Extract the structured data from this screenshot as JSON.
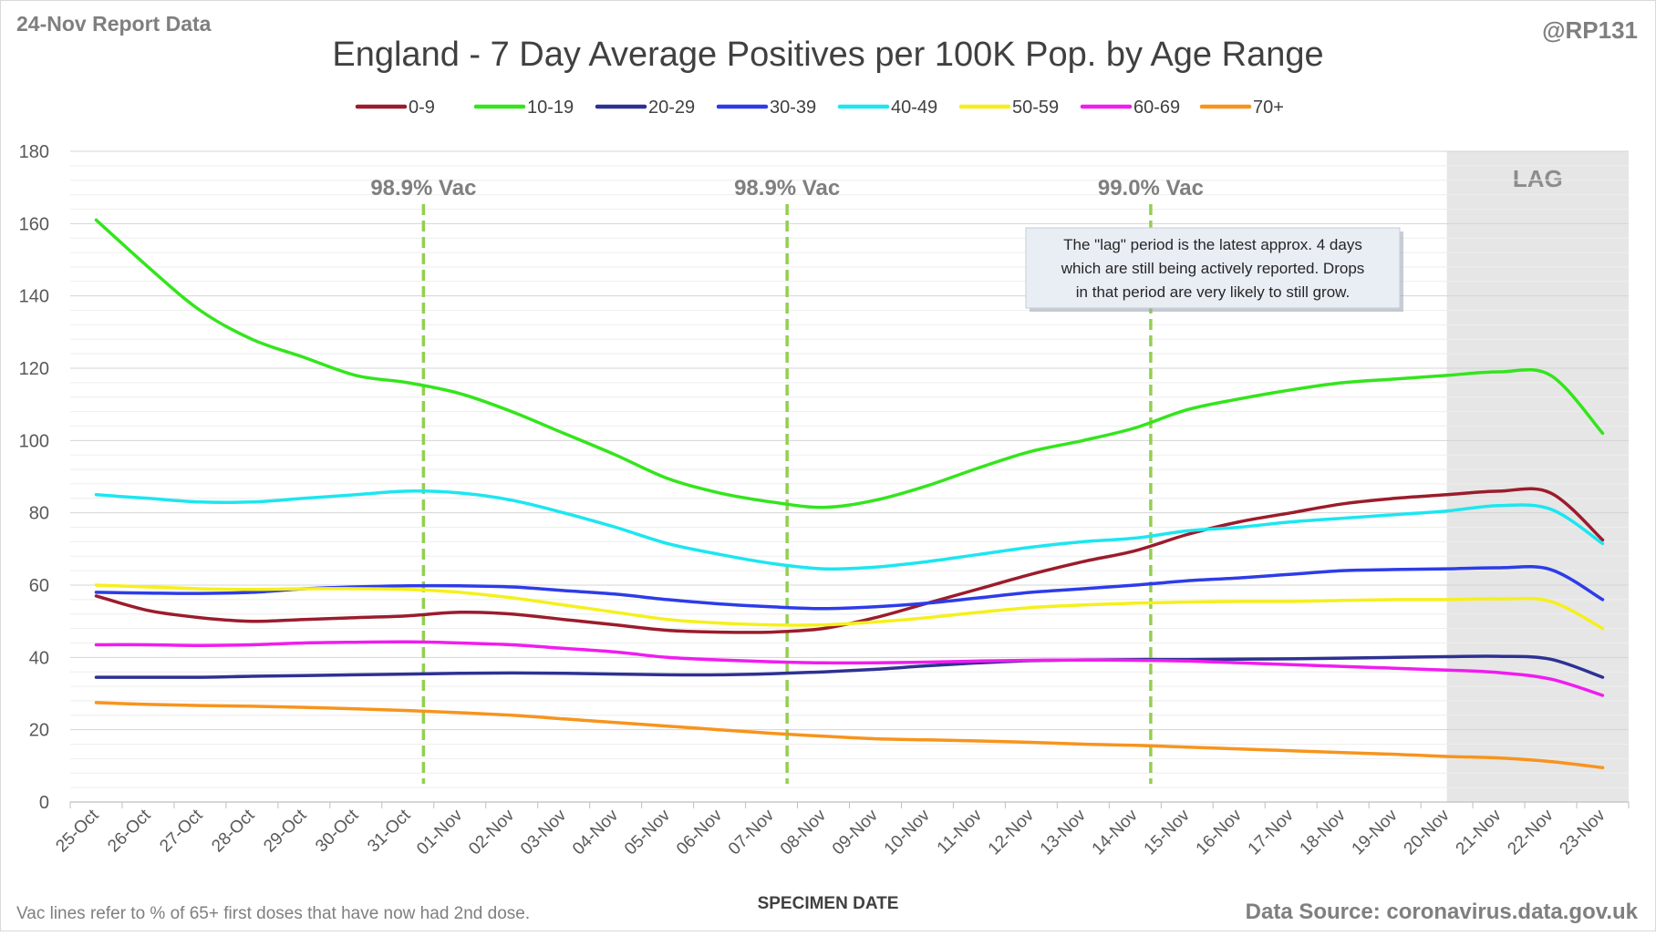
{
  "header": {
    "report_label": "24-Nov Report Data",
    "handle": "@RP131"
  },
  "footer": {
    "note": "Vac lines refer to % of 65+ first doses that have now had 2nd dose.",
    "source": "Data Source: coronavirus.data.gov.uk"
  },
  "annotation": {
    "lag_label": "LAG",
    "lag_note_lines": [
      "The \"lag\" period is the latest approx. 4 days",
      "which are still being actively reported.  Drops",
      "in that period are very likely to still grow."
    ]
  },
  "colors": {
    "grid": "#d9d9d9",
    "axis_text": "#595959",
    "vac_line": "#92d050",
    "lag_shade": "#e6e6e6"
  },
  "chart_data": {
    "type": "line",
    "title": "England - 7 Day Average Positives per 100K Pop. by Age Range",
    "xlabel": "SPECIMEN DATE",
    "ylabel": "",
    "ylim": [
      0,
      180
    ],
    "yticks": [
      0,
      20,
      40,
      60,
      80,
      100,
      120,
      140,
      160,
      180
    ],
    "grid": true,
    "legend_position": "top",
    "categories": [
      "25-Oct",
      "26-Oct",
      "27-Oct",
      "28-Oct",
      "29-Oct",
      "30-Oct",
      "31-Oct",
      "01-Nov",
      "02-Nov",
      "03-Nov",
      "04-Nov",
      "05-Nov",
      "06-Nov",
      "07-Nov",
      "08-Nov",
      "09-Nov",
      "10-Nov",
      "11-Nov",
      "12-Nov",
      "13-Nov",
      "14-Nov",
      "15-Nov",
      "16-Nov",
      "17-Nov",
      "18-Nov",
      "19-Nov",
      "20-Nov",
      "21-Nov",
      "22-Nov",
      "23-Nov"
    ],
    "lag_start": "20-Nov",
    "vac_markers": [
      {
        "date": "31-Oct",
        "label": "98.9% Vac"
      },
      {
        "date": "07-Nov",
        "label": "98.9% Vac"
      },
      {
        "date": "14-Nov",
        "label": "99.0% Vac"
      }
    ],
    "series": [
      {
        "name": "0-9",
        "color": "#9b1c2c",
        "values": [
          57,
          53,
          51,
          50,
          50.5,
          51,
          51.5,
          52.5,
          52,
          50.5,
          49,
          47.5,
          47,
          47,
          48,
          51,
          55,
          59,
          63,
          66.5,
          69.5,
          74,
          77.5,
          80,
          82.5,
          84,
          85,
          86,
          85.5,
          72.5
        ]
      },
      {
        "name": "10-19",
        "color": "#33e51c",
        "values": [
          161,
          148,
          136,
          128,
          123,
          118,
          116,
          113,
          108,
          102,
          96,
          89.5,
          85.5,
          83,
          81.5,
          83.5,
          87.5,
          92.5,
          97,
          100,
          103.5,
          108.5,
          111.5,
          114,
          116,
          117,
          118,
          119,
          118,
          102
        ]
      },
      {
        "name": "20-29",
        "color": "#2e3192",
        "values": [
          34.5,
          34.5,
          34.5,
          34.8,
          35,
          35.2,
          35.4,
          35.6,
          35.7,
          35.6,
          35.4,
          35.2,
          35.2,
          35.5,
          36,
          36.7,
          37.7,
          38.5,
          39.1,
          39.3,
          39.4,
          39.4,
          39.5,
          39.6,
          39.8,
          40,
          40.2,
          40.3,
          39.5,
          34.5
        ]
      },
      {
        "name": "30-39",
        "color": "#2d3ce8",
        "values": [
          58,
          57.8,
          57.7,
          58,
          59,
          59.5,
          59.8,
          59.8,
          59.5,
          58.5,
          57.5,
          56,
          54.8,
          54,
          53.5,
          54,
          55,
          56.5,
          58,
          59,
          60,
          61.2,
          62,
          63,
          64,
          64.3,
          64.5,
          64.8,
          64.3,
          56
        ]
      },
      {
        "name": "40-49",
        "color": "#1ce6f0",
        "values": [
          85,
          84,
          83,
          83,
          84,
          85,
          86,
          85.5,
          83.5,
          80,
          76,
          71.5,
          68.5,
          66,
          64.5,
          65,
          66.5,
          68.5,
          70.5,
          72,
          73,
          75,
          76,
          77.5,
          78.5,
          79.5,
          80.5,
          82,
          81,
          71.5
        ]
      },
      {
        "name": "50-59",
        "color": "#f5f01c",
        "values": [
          60,
          59.5,
          59,
          58.8,
          59,
          59,
          58.8,
          58,
          56.5,
          54.5,
          52.5,
          50.5,
          49.5,
          49,
          49,
          49.8,
          51,
          52.5,
          53.8,
          54.5,
          55,
          55.3,
          55.5,
          55.5,
          55.8,
          56,
          56,
          56.2,
          55.5,
          48
        ]
      },
      {
        "name": "60-69",
        "color": "#f01cf0",
        "values": [
          43.5,
          43.5,
          43.3,
          43.5,
          44,
          44.2,
          44.3,
          44,
          43.5,
          42.5,
          41.5,
          40,
          39.3,
          38.8,
          38.5,
          38.5,
          38.7,
          39,
          39.2,
          39.3,
          39.2,
          39,
          38.5,
          38,
          37.5,
          37,
          36.5,
          35.8,
          34,
          29.5
        ]
      },
      {
        "name": "70+",
        "color": "#f7941d",
        "values": [
          27.5,
          27,
          26.7,
          26.5,
          26.2,
          25.8,
          25.3,
          24.7,
          24,
          23,
          22,
          21,
          20,
          19,
          18.2,
          17.5,
          17.2,
          16.9,
          16.5,
          16,
          15.7,
          15.2,
          14.7,
          14.2,
          13.7,
          13.2,
          12.6,
          12.2,
          11.2,
          9.5
        ]
      }
    ]
  }
}
